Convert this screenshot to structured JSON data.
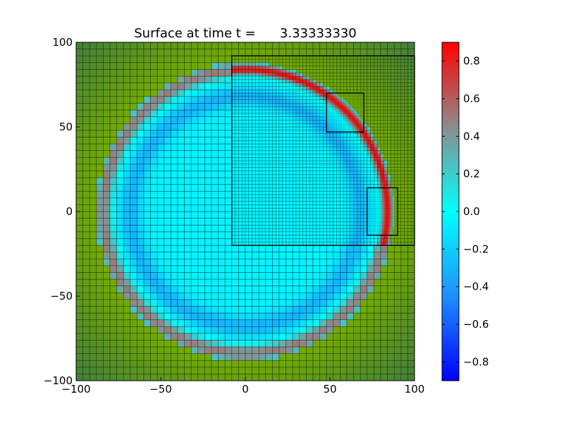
{
  "chart_data": {
    "type": "heatmap",
    "title": "Surface at time t =      3.33333330",
    "xlabel": "",
    "ylabel": "",
    "xlim": [
      -100,
      100
    ],
    "ylim": [
      -100,
      100
    ],
    "x_ticks": [
      -100,
      -50,
      0,
      50,
      100
    ],
    "y_ticks": [
      -100,
      -50,
      0,
      50,
      100
    ],
    "x_tick_labels": [
      "−100",
      "−50",
      "0",
      "50",
      "100"
    ],
    "y_tick_labels": [
      "−100",
      "−50",
      "0",
      "50",
      "100"
    ],
    "colorbar": {
      "range": [
        -0.9,
        0.9
      ],
      "ticks": [
        0.8,
        0.6,
        0.4,
        0.2,
        0.0,
        -0.2,
        -0.4,
        -0.6,
        -0.8
      ],
      "tick_labels": [
        "0.8",
        "0.6",
        "0.4",
        "0.2",
        "0.0",
        "−0.2",
        "−0.4",
        "−0.6",
        "−0.8"
      ],
      "colormap": [
        {
          "value": -0.9,
          "color": "#0000ff"
        },
        {
          "value": -0.45,
          "color": "#1e90ff"
        },
        {
          "value": 0.0,
          "color": "#00ffff"
        },
        {
          "value": 0.45,
          "color": "#8c8c8c"
        },
        {
          "value": 0.9,
          "color": "#ff0000"
        }
      ]
    },
    "land_colors": {
      "low": "#73ad00",
      "high": "#437f3a"
    },
    "wave": {
      "center": [
        0,
        0
      ],
      "crest_radius": 84,
      "trough_radius": 68,
      "coarse_crest_value": 0.5,
      "fine_crest_value": 0.85,
      "trough_value": -0.3,
      "inner_value": -0.05,
      "land_radius": 88
    },
    "refinement_levels": [
      {
        "level": 1,
        "x": [
          -100,
          100
        ],
        "y": [
          -100,
          100
        ],
        "cell": 4
      },
      {
        "level": 2,
        "x": [
          -8,
          100
        ],
        "y": [
          -20,
          92
        ],
        "cell": 2
      },
      {
        "level": 3,
        "x": [
          48,
          70
        ],
        "y": [
          47,
          70
        ],
        "cell": 1
      },
      {
        "level": 3,
        "x": [
          72,
          90
        ],
        "y": [
          -14,
          14
        ],
        "cell": 1
      }
    ]
  }
}
